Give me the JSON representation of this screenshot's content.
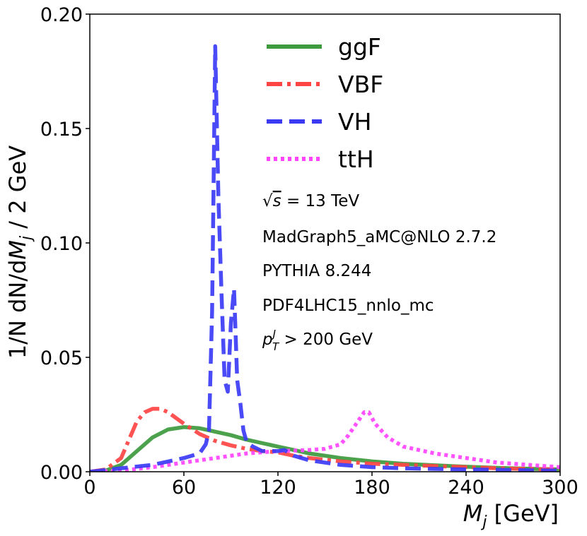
{
  "chart_data": {
    "type": "line",
    "xlabel_main": "M",
    "xlabel_sub": "j",
    "xlabel_unit": " [GeV]",
    "ylabel_pre": "1/N dN/d",
    "ylabel_var": "M",
    "ylabel_sub": "j",
    "ylabel_post": " / 2 GeV",
    "xlim": [
      0,
      300
    ],
    "ylim": [
      0,
      0.2
    ],
    "x_ticks": [
      "0",
      "60",
      "120",
      "180",
      "240",
      "300"
    ],
    "y_ticks": [
      "0.00",
      "0.05",
      "0.10",
      "0.15",
      "0.20"
    ],
    "grid": false,
    "legend_position": "top-center",
    "annotations": {
      "sqrt_s_tail": " = 13 TeV",
      "generator": "MadGraph5_aMC@NLO 2.7.2",
      "shower": "PYTHIA 8.244",
      "pdf": "PDF4LHC15_nnlo_mc",
      "pt_tail": " > 200 GeV"
    },
    "series": [
      {
        "name": "ggF",
        "color": "#3d9a3d",
        "style": "solid",
        "x": [
          0,
          10,
          20,
          30,
          40,
          50,
          60,
          70,
          80,
          90,
          100,
          110,
          120,
          130,
          140,
          150,
          160,
          180,
          200,
          220,
          240,
          260,
          280,
          300
        ],
        "y": [
          0,
          0.0005,
          0.003,
          0.009,
          0.015,
          0.0185,
          0.0195,
          0.019,
          0.0175,
          0.016,
          0.014,
          0.0125,
          0.011,
          0.0095,
          0.008,
          0.007,
          0.006,
          0.0045,
          0.0035,
          0.0028,
          0.0022,
          0.0017,
          0.0013,
          0.001
        ]
      },
      {
        "name": "VBF",
        "color": "#ff4444",
        "style": "dashdot",
        "x": [
          0,
          10,
          20,
          25,
          30,
          35,
          40,
          45,
          50,
          60,
          70,
          80,
          90,
          100,
          110,
          120,
          130,
          140,
          160,
          180,
          200,
          220,
          240,
          260,
          280,
          300
        ],
        "y": [
          0,
          0.001,
          0.006,
          0.014,
          0.022,
          0.026,
          0.0275,
          0.0275,
          0.026,
          0.021,
          0.0165,
          0.0135,
          0.0115,
          0.01,
          0.009,
          0.0085,
          0.007,
          0.006,
          0.0045,
          0.0035,
          0.003,
          0.0025,
          0.002,
          0.0015,
          0.0012,
          0.001
        ]
      },
      {
        "name": "VH",
        "color": "#3b3bf5",
        "style": "dashed",
        "x": [
          0,
          20,
          40,
          60,
          70,
          72,
          74,
          76,
          78,
          80,
          82,
          84,
          86,
          88,
          90,
          92,
          94,
          96,
          98,
          100,
          104,
          110,
          120,
          124,
          130,
          140,
          160,
          180,
          200,
          240,
          300
        ],
        "y": [
          0,
          0.0015,
          0.003,
          0.006,
          0.008,
          0.01,
          0.012,
          0.018,
          0.07,
          0.186,
          0.12,
          0.078,
          0.04,
          0.035,
          0.065,
          0.08,
          0.04,
          0.03,
          0.018,
          0.013,
          0.011,
          0.009,
          0.009,
          0.0095,
          0.007,
          0.005,
          0.003,
          0.002,
          0.0015,
          0.001,
          0.0005
        ]
      },
      {
        "name": "ttH",
        "color": "#ff44ff",
        "style": "dotted",
        "x": [
          0,
          20,
          40,
          60,
          80,
          100,
          120,
          140,
          150,
          160,
          165,
          170,
          175,
          178,
          182,
          190,
          200,
          220,
          240,
          260,
          280,
          300
        ],
        "y": [
          0,
          0.0005,
          0.002,
          0.004,
          0.006,
          0.008,
          0.009,
          0.0095,
          0.01,
          0.012,
          0.016,
          0.021,
          0.026,
          0.026,
          0.021,
          0.015,
          0.011,
          0.008,
          0.006,
          0.004,
          0.003,
          0.002
        ]
      }
    ]
  }
}
